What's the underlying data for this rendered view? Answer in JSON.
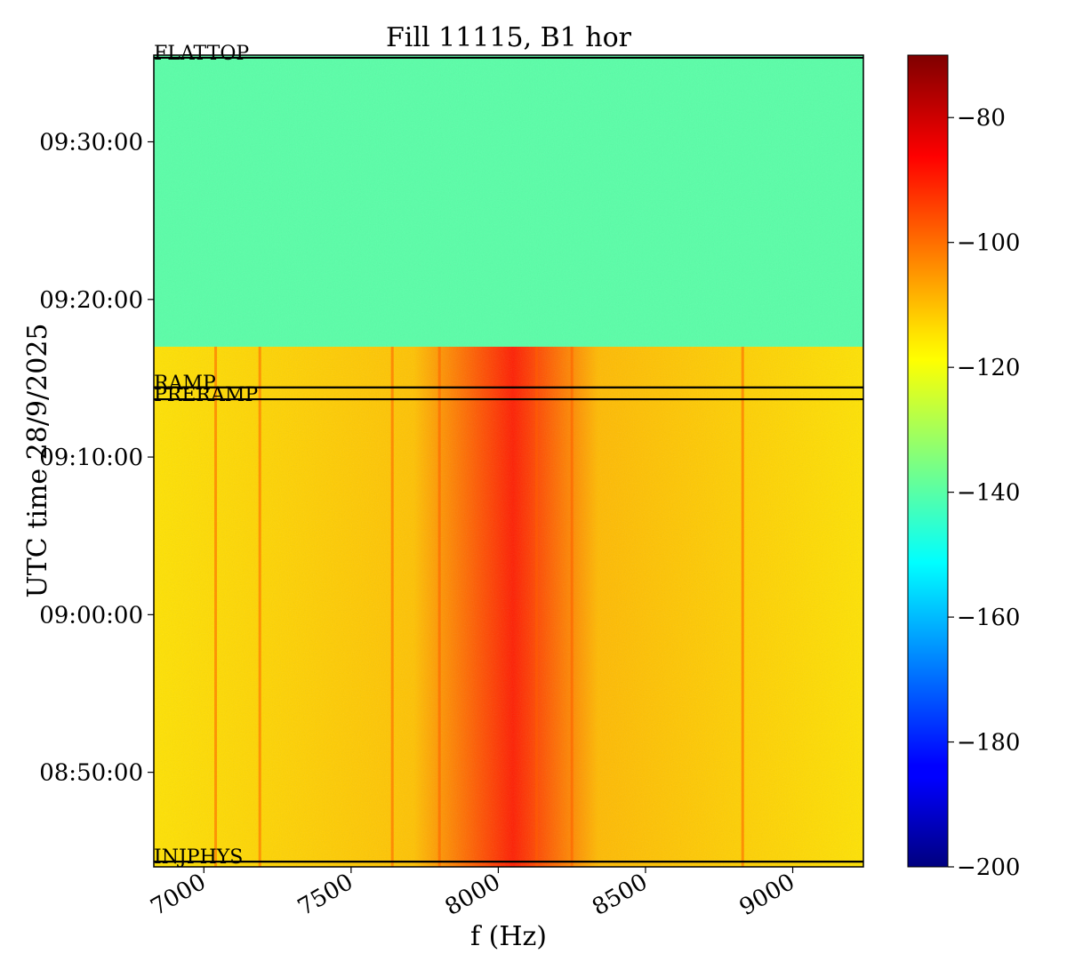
{
  "chart_data": {
    "type": "heatmap",
    "title": "Fill 11115, B1 hor",
    "xlabel": "f (Hz)",
    "ylabel": "UTC time 28/9/2025",
    "xlim": [
      6830,
      9240
    ],
    "x_ticks": [
      {
        "value": 7000,
        "label": "7000"
      },
      {
        "value": 7500,
        "label": "7500"
      },
      {
        "value": 8000,
        "label": "8000"
      },
      {
        "value": 8500,
        "label": "8500"
      },
      {
        "value": 9000,
        "label": "9000"
      }
    ],
    "ylim": [
      "08:44:00",
      "09:35:30"
    ],
    "y_ticks": [
      {
        "value": "08:50:00",
        "label": "08:50:00"
      },
      {
        "value": "09:00:00",
        "label": "09:00:00"
      },
      {
        "value": "09:10:00",
        "label": "09:10:00"
      },
      {
        "value": "09:20:00",
        "label": "09:20:00"
      },
      {
        "value": "09:30:00",
        "label": "09:30:00"
      }
    ],
    "colorbar": {
      "colormap": "jet",
      "range": [
        -200,
        -70
      ],
      "ticks": [
        {
          "value": -80,
          "label": "−80"
        },
        {
          "value": -100,
          "label": "−100"
        },
        {
          "value": -120,
          "label": "−120"
        },
        {
          "value": -140,
          "label": "−140"
        },
        {
          "value": -160,
          "label": "−160"
        },
        {
          "value": -180,
          "label": "−180"
        },
        {
          "value": -200,
          "label": "−200"
        }
      ]
    },
    "markers": [
      {
        "label": "FLATTOP",
        "time": "09:35:20"
      },
      {
        "label": "RAMP",
        "time": "09:14:25"
      },
      {
        "label": "PRERAMP",
        "time": "09:13:40"
      },
      {
        "label": "INJPHYS",
        "time": "08:44:20"
      }
    ],
    "regions": [
      {
        "from": "09:17:00",
        "to": "09:35:30",
        "level": -140
      },
      {
        "from": "08:44:00",
        "to": "09:17:00",
        "level": -115,
        "peak_frequency": 8050,
        "peak_level": -90
      }
    ],
    "line_features_hz": [
      7040,
      7190,
      7640,
      7800,
      8130,
      8250,
      8830
    ],
    "grid": false
  }
}
